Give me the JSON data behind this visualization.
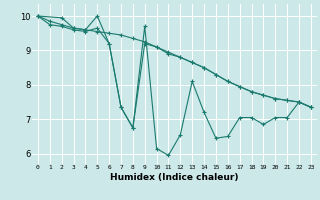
{
  "xlabel": "Humidex (Indice chaleur)",
  "ylabel": "",
  "bg_color": "#cce8e8",
  "line_color": "#1a7a6e",
  "grid_color": "#ffffff",
  "xlim": [
    -0.5,
    23.5
  ],
  "ylim": [
    5.7,
    10.35
  ],
  "xticks": [
    0,
    1,
    2,
    3,
    4,
    5,
    6,
    7,
    8,
    9,
    10,
    11,
    12,
    13,
    14,
    15,
    16,
    17,
    18,
    19,
    20,
    21,
    22,
    23
  ],
  "yticks": [
    6,
    7,
    8,
    9,
    10
  ],
  "line1_x": [
    0,
    1,
    2,
    3,
    4,
    5,
    6,
    7,
    8,
    9,
    10,
    11,
    12,
    13,
    14,
    15,
    16,
    17,
    18,
    19,
    20,
    21,
    22,
    23
  ],
  "line1_y": [
    10.0,
    9.85,
    9.75,
    9.65,
    9.6,
    9.55,
    9.5,
    9.45,
    9.35,
    9.25,
    9.1,
    8.95,
    8.8,
    8.65,
    8.5,
    8.3,
    8.1,
    7.95,
    7.8,
    7.7,
    7.6,
    7.55,
    7.5,
    7.35
  ],
  "line2_x": [
    0,
    2,
    3,
    4,
    5,
    6,
    7,
    8,
    9,
    10,
    11,
    12,
    13,
    14,
    15,
    16,
    17,
    18,
    19,
    20,
    21,
    22,
    23
  ],
  "line2_y": [
    10.0,
    9.95,
    9.65,
    9.6,
    10.0,
    9.2,
    7.35,
    6.75,
    9.7,
    6.15,
    5.95,
    6.55,
    8.1,
    7.2,
    6.45,
    6.5,
    7.05,
    7.05,
    6.85,
    7.05,
    7.05,
    7.5,
    7.35
  ],
  "line3_x": [
    0,
    1,
    2,
    3,
    4,
    5,
    6,
    7,
    8,
    9,
    10,
    11,
    12,
    13,
    14,
    15,
    16,
    17,
    18,
    19,
    20,
    21,
    22,
    23
  ],
  "line3_y": [
    10.0,
    9.75,
    9.7,
    9.6,
    9.55,
    9.65,
    9.2,
    7.35,
    6.75,
    9.2,
    9.1,
    8.9,
    8.8,
    8.65,
    8.5,
    8.3,
    8.1,
    7.95,
    7.8,
    7.7,
    7.6,
    7.55,
    7.5,
    7.35
  ],
  "xlabel_fontsize": 6.5,
  "tick_fontsize_x": 4.5,
  "tick_fontsize_y": 6.0,
  "linewidth": 0.8,
  "markersize": 3.0
}
